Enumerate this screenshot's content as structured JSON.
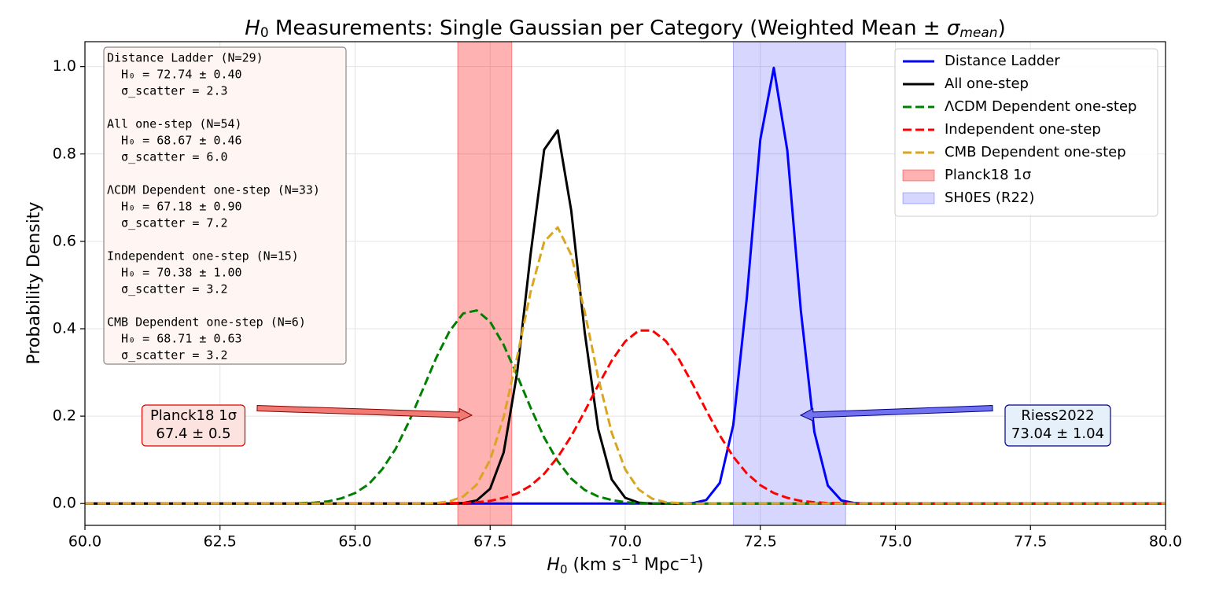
{
  "chart_data": {
    "type": "line",
    "title_parts": [
      "H",
      "0",
      " Measurements: Single Gaussian per Category (Weighted Mean ± ",
      "σ",
      "mean",
      ")"
    ],
    "xlabel_parts": [
      "H",
      "0",
      " (km s",
      "−1",
      " Mpc",
      "−1",
      ")"
    ],
    "ylabel": "Probability Density",
    "x": [
      60,
      60.25,
      60.5,
      60.75,
      61,
      61.25,
      61.5,
      61.75,
      62,
      62.25,
      62.5,
      62.75,
      63,
      63.25,
      63.5,
      63.75,
      64,
      64.25,
      64.5,
      64.75,
      65,
      65.25,
      65.5,
      65.75,
      66,
      66.25,
      66.5,
      66.75,
      67,
      67.25,
      67.5,
      67.75,
      68,
      68.25,
      68.5,
      68.75,
      69,
      69.25,
      69.5,
      69.75,
      70,
      70.25,
      70.5,
      70.75,
      71,
      71.25,
      71.5,
      71.75,
      72,
      72.25,
      72.5,
      72.75,
      73,
      73.25,
      73.5,
      73.75,
      74,
      74.25,
      74.5,
      74.75,
      75,
      75.25,
      75.5,
      75.75,
      76,
      76.25,
      76.5,
      76.75,
      77,
      77.25,
      77.5,
      77.75,
      78,
      78.25,
      78.5,
      78.75,
      79,
      79.25,
      79.5,
      79.75,
      80
    ],
    "series": [
      {
        "name": "Distance Ladder",
        "color": "#0000ff",
        "linestyle": "solid",
        "values": [
          0,
          0,
          0,
          0,
          0,
          0,
          0,
          0,
          0,
          0,
          0,
          0,
          0,
          0,
          0,
          0,
          0,
          0,
          0,
          0,
          0,
          0,
          0,
          0,
          0,
          0,
          0,
          0,
          0,
          0,
          0,
          0,
          0,
          0,
          0,
          0,
          0,
          0,
          0,
          0,
          0,
          0,
          0,
          0,
          0,
          0.001,
          0.008,
          0.047,
          0.18,
          0.471,
          0.833,
          0.997,
          0.808,
          0.442,
          0.164,
          0.041,
          0.007,
          0.001,
          0,
          0,
          0,
          0,
          0,
          0,
          0,
          0,
          0,
          0,
          0,
          0,
          0,
          0,
          0,
          0,
          0,
          0,
          0,
          0,
          0,
          0,
          0
        ]
      },
      {
        "name": "All one-step",
        "color": "#000000",
        "linestyle": "solid",
        "values": [
          0,
          0,
          0,
          0,
          0,
          0,
          0,
          0,
          0,
          0,
          0,
          0,
          0,
          0,
          0,
          0,
          0,
          0,
          0,
          0,
          0,
          0,
          0,
          0,
          0,
          0,
          0,
          0,
          0.001,
          0.007,
          0.034,
          0.117,
          0.3,
          0.572,
          0.81,
          0.854,
          0.671,
          0.392,
          0.17,
          0.055,
          0.013,
          0.002,
          0,
          0,
          0,
          0,
          0,
          0,
          0,
          0,
          0,
          0,
          0,
          0,
          0,
          0,
          0,
          0,
          0,
          0,
          0,
          0,
          0,
          0,
          0,
          0,
          0,
          0,
          0,
          0,
          0,
          0,
          0,
          0,
          0,
          0,
          0,
          0,
          0,
          0,
          0
        ]
      },
      {
        "name": "ΛCDM Dependent one-step",
        "color": "#008000",
        "linestyle": "dashed",
        "values": [
          0,
          0,
          0,
          0,
          0,
          0,
          0,
          0,
          0,
          0,
          0,
          0,
          0,
          0,
          0,
          0,
          0.001,
          0.002,
          0.005,
          0.012,
          0.024,
          0.044,
          0.078,
          0.125,
          0.188,
          0.26,
          0.333,
          0.395,
          0.435,
          0.442,
          0.416,
          0.363,
          0.293,
          0.219,
          0.151,
          0.097,
          0.057,
          0.031,
          0.016,
          0.008,
          0.003,
          0.001,
          0,
          0,
          0,
          0,
          0,
          0,
          0,
          0,
          0,
          0,
          0,
          0,
          0,
          0,
          0,
          0,
          0,
          0,
          0,
          0,
          0,
          0,
          0,
          0,
          0,
          0,
          0,
          0,
          0,
          0,
          0,
          0,
          0,
          0,
          0,
          0,
          0,
          0,
          0
        ]
      },
      {
        "name": "Independent one-step",
        "color": "#ff0000",
        "linestyle": "dashed",
        "values": [
          0,
          0,
          0,
          0,
          0,
          0,
          0,
          0,
          0,
          0,
          0,
          0,
          0,
          0,
          0,
          0,
          0,
          0,
          0,
          0,
          0,
          0,
          0,
          0,
          0,
          0,
          0,
          0.001,
          0.001,
          0.003,
          0.006,
          0.013,
          0.023,
          0.041,
          0.068,
          0.106,
          0.154,
          0.211,
          0.271,
          0.327,
          0.371,
          0.396,
          0.396,
          0.372,
          0.329,
          0.273,
          0.213,
          0.156,
          0.107,
          0.069,
          0.042,
          0.024,
          0.013,
          0.006,
          0.003,
          0.001,
          0.001,
          0,
          0,
          0,
          0,
          0,
          0,
          0,
          0,
          0,
          0,
          0,
          0,
          0,
          0,
          0,
          0,
          0,
          0,
          0,
          0,
          0,
          0,
          0,
          0
        ]
      },
      {
        "name": "CMB Dependent one-step",
        "color": "#daa520",
        "linestyle": "dashed",
        "values": [
          0,
          0,
          0,
          0,
          0,
          0,
          0,
          0,
          0,
          0,
          0,
          0,
          0,
          0,
          0,
          0,
          0,
          0,
          0,
          0,
          0,
          0,
          0,
          0,
          0,
          0,
          0.001,
          0.005,
          0.016,
          0.043,
          0.1,
          0.198,
          0.336,
          0.485,
          0.599,
          0.632,
          0.569,
          0.439,
          0.288,
          0.162,
          0.078,
          0.032,
          0.011,
          0.003,
          0.001,
          0,
          0,
          0,
          0,
          0,
          0,
          0,
          0,
          0,
          0,
          0,
          0,
          0,
          0,
          0,
          0,
          0,
          0,
          0,
          0,
          0,
          0,
          0,
          0,
          0,
          0,
          0,
          0,
          0,
          0,
          0,
          0,
          0,
          0,
          0,
          0
        ]
      }
    ],
    "bands": [
      {
        "name": "Planck18 1σ",
        "color": "#ff0000",
        "opacity": 0.3,
        "x0": 66.9,
        "x1": 67.9
      },
      {
        "name": "SH0ES (R22)",
        "color": "#0000ff",
        "opacity": 0.16,
        "x0": 72.0,
        "x1": 74.08
      }
    ],
    "xlim": [
      60,
      80
    ],
    "ylim": [
      -0.05,
      1.057
    ],
    "xticks": [
      {
        "value": 60,
        "label": "60.0"
      },
      62.5,
      {
        "value": 65,
        "label": "65.0"
      },
      67.5,
      {
        "value": 70,
        "label": "70.0"
      },
      72.5,
      {
        "value": 75,
        "label": "75.0"
      },
      77.5,
      {
        "value": 80,
        "label": "80.0"
      }
    ],
    "yticks": [
      {
        "value": 0,
        "label": "0.0"
      },
      0.2,
      0.4,
      0.6,
      0.8,
      {
        "value": 1,
        "label": "1.0"
      }
    ],
    "grid": true,
    "legend": "upper right",
    "stats_box": [
      [
        "Distance Ladder (N=29)",
        "  H₀ = 72.74 ± 0.40",
        "  σ_scatter = 2.3"
      ],
      [
        "All one-step (N=54)",
        "  H₀ = 68.67 ± 0.46",
        "  σ_scatter = 6.0"
      ],
      [
        "ΛCDM Dependent one-step (N=33)",
        "  H₀ = 67.18 ± 0.90",
        "  σ_scatter = 7.2"
      ],
      [
        "Independent one-step (N=15)",
        "  H₀ = 70.38 ± 1.00",
        "  σ_scatter = 3.2"
      ],
      [
        "CMB Dependent one-step (N=6)",
        "  H₀ = 68.71 ± 0.63",
        "  σ_scatter = 3.2"
      ]
    ],
    "annotations": [
      {
        "lines": [
          "Planck18 1σ",
          "67.4 ± 0.5"
        ],
        "fill": "#fde3df",
        "stroke": "#e00000",
        "arrow_fill": "#f07a74",
        "arrow_stroke": "#8b0000"
      },
      {
        "lines": [
          "Riess2022",
          "73.04 ± 1.04"
        ],
        "fill": "#e6f0fb",
        "stroke": "#00008b",
        "arrow_fill": "#7272ee",
        "arrow_stroke": "#00008b"
      }
    ]
  }
}
